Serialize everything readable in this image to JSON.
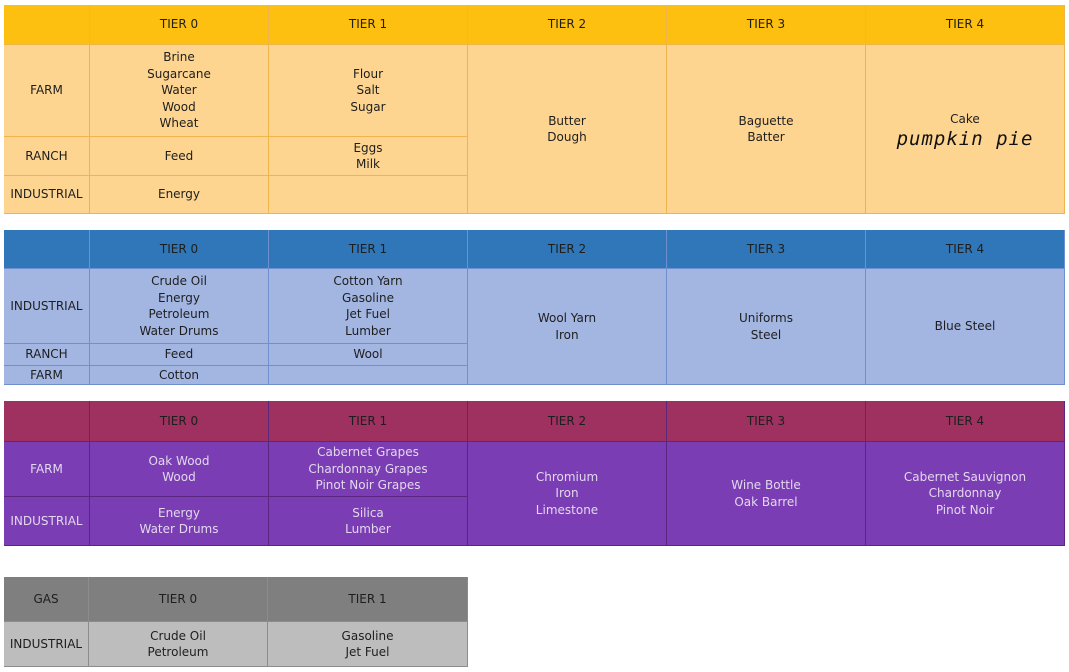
{
  "tables": [
    {
      "header": [
        "TIER 0",
        "TIER 1",
        "TIER 2",
        "TIER 3",
        "TIER 4"
      ],
      "rows": [
        {
          "label": "FARM",
          "cells": [
            [
              "Brine",
              "Sugarcane",
              "Water",
              "Wood",
              "Wheat"
            ],
            [
              "Flour",
              "Salt",
              "Sugar"
            ]
          ]
        },
        {
          "label": "RANCH",
          "cells": [
            [
              "Feed"
            ],
            [
              "Eggs",
              "Milk"
            ]
          ]
        },
        {
          "label": "INDUSTRIAL",
          "cells": [
            [
              "Energy"
            ],
            []
          ]
        }
      ],
      "spanned": [
        [
          "Butter",
          "Dough"
        ],
        [
          "Baguette",
          "Batter"
        ],
        [
          "Cake"
        ]
      ],
      "handwriting": "pumpkin pie"
    },
    {
      "header": [
        "TIER 0",
        "TIER 1",
        "TIER 2",
        "TIER 3",
        "TIER 4"
      ],
      "rows": [
        {
          "label": "INDUSTRIAL",
          "cells": [
            [
              "Crude Oil",
              "Energy",
              "Petroleum",
              "Water Drums"
            ],
            [
              "Cotton Yarn",
              "Gasoline",
              "Jet Fuel",
              "Lumber"
            ]
          ]
        },
        {
          "label": "RANCH",
          "cells": [
            [
              "Feed"
            ],
            [
              "Wool"
            ]
          ]
        },
        {
          "label": "FARM",
          "cells": [
            [
              "Cotton"
            ],
            []
          ]
        }
      ],
      "spanned": [
        [
          "Wool Yarn",
          "Iron"
        ],
        [
          "Uniforms",
          "Steel"
        ],
        [
          "Blue Steel"
        ]
      ]
    },
    {
      "header": [
        "TIER 0",
        "TIER 1",
        "TIER 2",
        "TIER 3",
        "TIER 4"
      ],
      "rows": [
        {
          "label": "FARM",
          "cells": [
            [
              "Oak Wood",
              "Wood"
            ],
            [
              "Cabernet Grapes",
              "Chardonnay Grapes",
              "Pinot Noir Grapes"
            ]
          ]
        },
        {
          "label": "INDUSTRIAL",
          "cells": [
            [
              "Energy",
              "Water Drums"
            ],
            [
              "Silica",
              "Lumber"
            ]
          ]
        }
      ],
      "spanned": [
        [
          "Chromium",
          "Iron",
          "Limestone"
        ],
        [
          "Wine Bottle",
          "Oak Barrel"
        ],
        [
          "Cabernet Sauvignon",
          "Chardonnay",
          "Pinot Noir"
        ]
      ]
    },
    {
      "corner": "GAS",
      "header": [
        "TIER 0",
        "TIER 1"
      ],
      "rows": [
        {
          "label": "INDUSTRIAL",
          "cells": [
            [
              "Crude Oil",
              "Petroleum"
            ],
            [
              "Gasoline",
              "Jet Fuel"
            ]
          ]
        }
      ],
      "spanned": []
    }
  ]
}
